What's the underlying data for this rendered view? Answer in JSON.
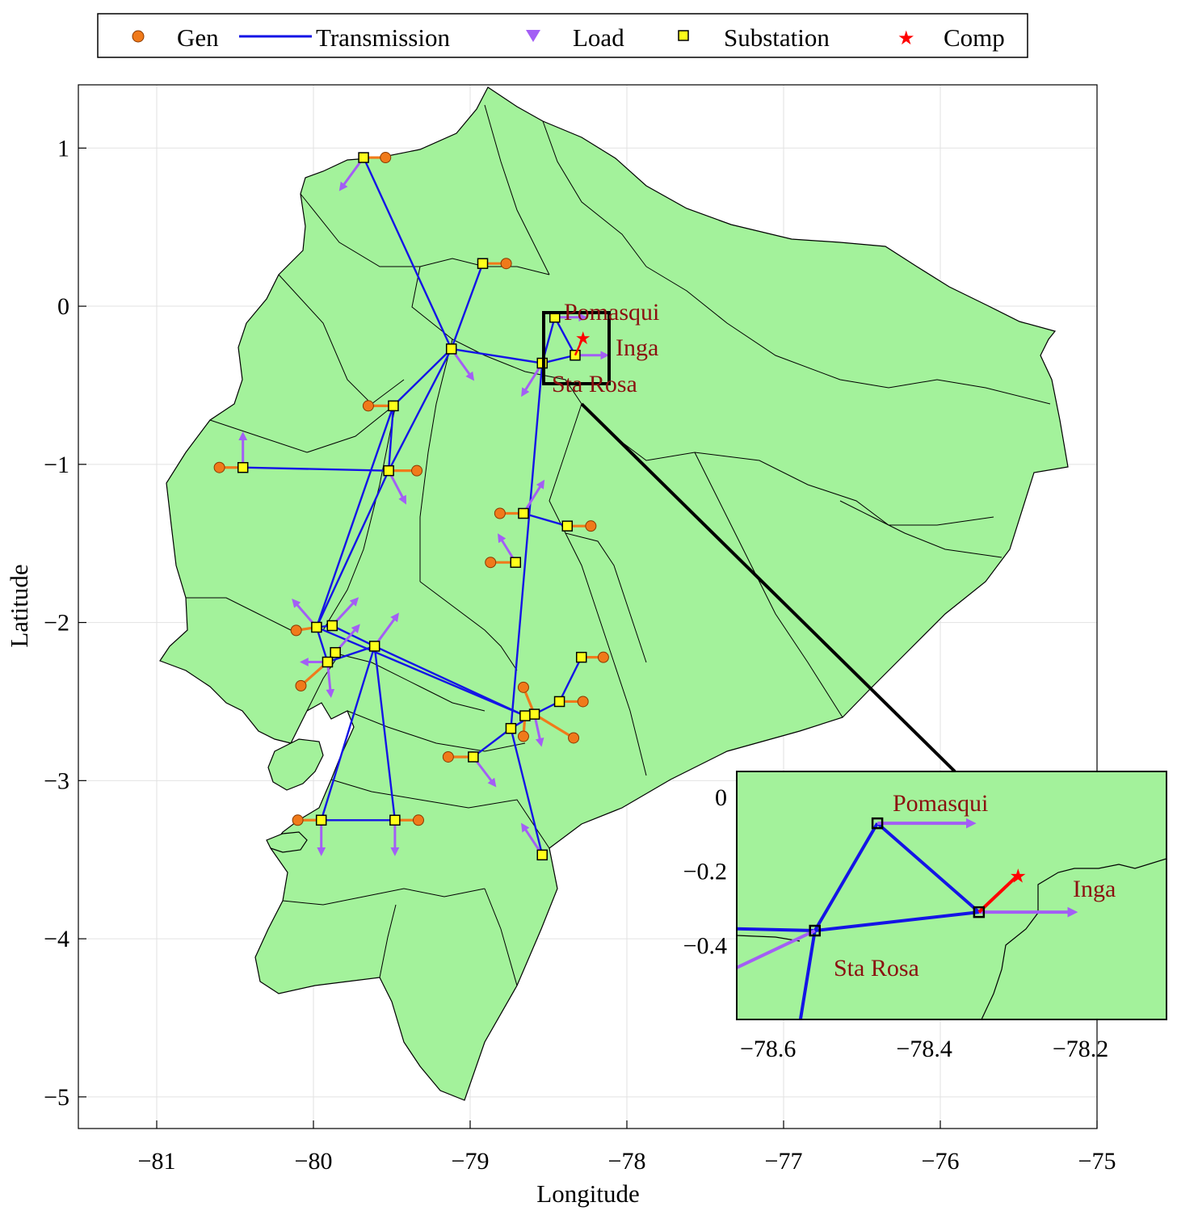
{
  "legend": {
    "gen": "Gen",
    "transmission": "Transmission",
    "load": "Load",
    "substation": "Substation",
    "comp": "Comp"
  },
  "axes": {
    "xlabel": "Longitude",
    "ylabel": "Latitude",
    "xticks": [
      "−81",
      "−80",
      "−79",
      "−78",
      "−77",
      "−76",
      "−75"
    ],
    "yticks": [
      "1",
      "0",
      "−1",
      "−2",
      "−3",
      "−4",
      "−5"
    ],
    "xlim": [
      -81.5,
      -75
    ],
    "ylim": [
      -5.2,
      1.4
    ],
    "grid": true
  },
  "colors": {
    "land": "#a3f29b",
    "gen": "#f07a1a",
    "transmission": "#1414e6",
    "load": "#a35ef5",
    "substation": "#ffff1a",
    "comp": "#ff0000",
    "place_label": "#8b1010"
  },
  "place_labels": {
    "pomasqui": "Pomasqui",
    "inga": "Inga",
    "sta_rosa": "Sta Rosa"
  },
  "inset": {
    "xticks": [
      "−78.6",
      "−78.4",
      "−78.2"
    ],
    "yticks": [
      "0",
      "−0.2",
      "−0.4"
    ],
    "xlim": [
      -78.64,
      -78.09
    ],
    "ylim": [
      -0.6,
      0.07
    ]
  },
  "chart_data": {
    "type": "map",
    "substations": [
      {
        "lon": -79.68,
        "lat": 0.94
      },
      {
        "lon": -78.92,
        "lat": 0.27
      },
      {
        "lon": -79.12,
        "lat": -0.27
      },
      {
        "lon": -78.46,
        "lat": -0.07
      },
      {
        "lon": -78.33,
        "lat": -0.31
      },
      {
        "lon": -78.54,
        "lat": -0.36
      },
      {
        "lon": -79.49,
        "lat": -0.63
      },
      {
        "lon": -79.52,
        "lat": -1.04
      },
      {
        "lon": -80.45,
        "lat": -1.02
      },
      {
        "lon": -78.66,
        "lat": -1.31
      },
      {
        "lon": -78.38,
        "lat": -1.39
      },
      {
        "lon": -78.71,
        "lat": -1.62
      },
      {
        "lon": -79.98,
        "lat": -2.03
      },
      {
        "lon": -79.88,
        "lat": -2.02
      },
      {
        "lon": -79.61,
        "lat": -2.15
      },
      {
        "lon": -79.86,
        "lat": -2.19
      },
      {
        "lon": -79.91,
        "lat": -2.25
      },
      {
        "lon": -78.29,
        "lat": -2.22
      },
      {
        "lon": -78.43,
        "lat": -2.5
      },
      {
        "lon": -78.59,
        "lat": -2.58
      },
      {
        "lon": -78.65,
        "lat": -2.59
      },
      {
        "lon": -78.74,
        "lat": -2.67
      },
      {
        "lon": -78.98,
        "lat": -2.85
      },
      {
        "lon": -79.95,
        "lat": -3.25
      },
      {
        "lon": -79.48,
        "lat": -3.25
      },
      {
        "lon": -78.54,
        "lat": -3.47
      }
    ],
    "generators": [
      {
        "lon": -79.54,
        "lat": 0.94
      },
      {
        "lon": -78.77,
        "lat": 0.27
      },
      {
        "lon": -79.65,
        "lat": -0.63
      },
      {
        "lon": -79.34,
        "lat": -1.04
      },
      {
        "lon": -80.6,
        "lat": -1.02
      },
      {
        "lon": -78.81,
        "lat": -1.31
      },
      {
        "lon": -78.23,
        "lat": -1.39
      },
      {
        "lon": -78.87,
        "lat": -1.62
      },
      {
        "lon": -80.11,
        "lat": -2.05
      },
      {
        "lon": -80.08,
        "lat": -2.4
      },
      {
        "lon": -78.15,
        "lat": -2.22
      },
      {
        "lon": -78.28,
        "lat": -2.5
      },
      {
        "lon": -78.66,
        "lat": -2.41
      },
      {
        "lon": -78.66,
        "lat": -2.72
      },
      {
        "lon": -78.34,
        "lat": -2.73
      },
      {
        "lon": -79.14,
        "lat": -2.85
      },
      {
        "lon": -80.1,
        "lat": -3.25
      },
      {
        "lon": -79.33,
        "lat": -3.25
      }
    ],
    "loads": [
      {
        "from": [
          -79.68,
          0.94
        ],
        "to": [
          -79.82,
          0.75
        ]
      },
      {
        "from": [
          -79.12,
          -0.27
        ],
        "to": [
          -78.99,
          -0.45
        ]
      },
      {
        "from": [
          -78.54,
          -0.36
        ],
        "to": [
          -78.66,
          -0.55
        ]
      },
      {
        "from": [
          -78.46,
          -0.07
        ],
        "to": [
          -78.28,
          -0.07
        ]
      },
      {
        "from": [
          -78.33,
          -0.31
        ],
        "to": [
          -78.14,
          -0.31
        ]
      },
      {
        "from": [
          -80.45,
          -1.02
        ],
        "to": [
          -80.45,
          -0.82
        ]
      },
      {
        "from": [
          -79.52,
          -1.04
        ],
        "to": [
          -79.42,
          -1.23
        ]
      },
      {
        "from": [
          -78.66,
          -1.31
        ],
        "to": [
          -78.54,
          -1.12
        ]
      },
      {
        "from": [
          -78.71,
          -1.62
        ],
        "to": [
          -78.81,
          -1.46
        ]
      },
      {
        "from": [
          -79.98,
          -2.03
        ],
        "to": [
          -80.12,
          -1.87
        ]
      },
      {
        "from": [
          -79.88,
          -2.02
        ],
        "to": [
          -79.73,
          -1.86
        ]
      },
      {
        "from": [
          -79.86,
          -2.19
        ],
        "to": [
          -79.72,
          -2.03
        ]
      },
      {
        "from": [
          -79.61,
          -2.15
        ],
        "to": [
          -79.47,
          -1.96
        ]
      },
      {
        "from": [
          -79.91,
          -2.25
        ],
        "to": [
          -80.06,
          -2.25
        ]
      },
      {
        "from": [
          -79.91,
          -2.25
        ],
        "to": [
          -79.89,
          -2.45
        ]
      },
      {
        "from": [
          -78.59,
          -2.58
        ],
        "to": [
          -78.55,
          -2.76
        ]
      },
      {
        "from": [
          -78.98,
          -2.85
        ],
        "to": [
          -78.85,
          -3.02
        ]
      },
      {
        "from": [
          -78.54,
          -3.47
        ],
        "to": [
          -78.66,
          -3.29
        ]
      },
      {
        "from": [
          -79.95,
          -3.25
        ],
        "to": [
          -79.95,
          -3.45
        ]
      },
      {
        "from": [
          -79.48,
          -3.25
        ],
        "to": [
          -79.48,
          -3.45
        ]
      }
    ],
    "gen_links": [
      [
        -79.68,
        0.94,
        -79.54,
        0.94
      ],
      [
        -78.92,
        0.27,
        -78.77,
        0.27
      ],
      [
        -79.49,
        -0.63,
        -79.65,
        -0.63
      ],
      [
        -79.52,
        -1.04,
        -79.34,
        -1.04
      ],
      [
        -80.45,
        -1.02,
        -80.6,
        -1.02
      ],
      [
        -78.66,
        -1.31,
        -78.81,
        -1.31
      ],
      [
        -78.38,
        -1.39,
        -78.23,
        -1.39
      ],
      [
        -78.71,
        -1.62,
        -78.87,
        -1.62
      ],
      [
        -79.98,
        -2.03,
        -80.11,
        -2.05
      ],
      [
        -79.91,
        -2.25,
        -80.08,
        -2.4
      ],
      [
        -78.29,
        -2.22,
        -78.15,
        -2.22
      ],
      [
        -78.43,
        -2.5,
        -78.28,
        -2.5
      ],
      [
        -78.59,
        -2.58,
        -78.66,
        -2.41
      ],
      [
        -78.65,
        -2.59,
        -78.66,
        -2.72
      ],
      [
        -78.59,
        -2.58,
        -78.34,
        -2.73
      ],
      [
        -78.98,
        -2.85,
        -79.14,
        -2.85
      ],
      [
        -79.95,
        -3.25,
        -80.1,
        -3.25
      ],
      [
        -79.48,
        -3.25,
        -79.33,
        -3.25
      ]
    ],
    "lines": [
      [
        -79.68,
        0.94,
        -79.12,
        -0.27
      ],
      [
        -78.92,
        0.27,
        -79.12,
        -0.27
      ],
      [
        -79.12,
        -0.27,
        -78.54,
        -0.36
      ],
      [
        -78.54,
        -0.36,
        -78.46,
        -0.07
      ],
      [
        -78.46,
        -0.07,
        -78.33,
        -0.31
      ],
      [
        -78.33,
        -0.31,
        -78.54,
        -0.36
      ],
      [
        -79.12,
        -0.27,
        -79.49,
        -0.63
      ],
      [
        -79.49,
        -0.63,
        -79.52,
        -1.04
      ],
      [
        -79.12,
        -0.27,
        -79.52,
        -1.04
      ],
      [
        -80.45,
        -1.02,
        -79.52,
        -1.04
      ],
      [
        -79.49,
        -0.63,
        -79.98,
        -2.03
      ],
      [
        -79.52,
        -1.04,
        -79.98,
        -2.03
      ],
      [
        -78.54,
        -0.36,
        -78.74,
        -2.67
      ],
      [
        -78.66,
        -1.31,
        -78.38,
        -1.39
      ],
      [
        -79.98,
        -2.03,
        -79.88,
        -2.02
      ],
      [
        -79.98,
        -2.03,
        -79.91,
        -2.25
      ],
      [
        -79.88,
        -2.02,
        -79.61,
        -2.15
      ],
      [
        -79.91,
        -2.25,
        -79.61,
        -2.15
      ],
      [
        -79.61,
        -2.15,
        -78.65,
        -2.59
      ],
      [
        -79.98,
        -2.03,
        -78.65,
        -2.59
      ],
      [
        -79.61,
        -2.15,
        -79.95,
        -3.25
      ],
      [
        -79.61,
        -2.15,
        -79.48,
        -3.25
      ],
      [
        -79.95,
        -3.25,
        -79.48,
        -3.25
      ],
      [
        -78.65,
        -2.59,
        -78.59,
        -2.58
      ],
      [
        -78.59,
        -2.58,
        -78.43,
        -2.5
      ],
      [
        -78.43,
        -2.5,
        -78.29,
        -2.22
      ],
      [
        -78.74,
        -2.67,
        -78.98,
        -2.85
      ],
      [
        -78.74,
        -2.67,
        -78.54,
        -3.47
      ],
      [
        -78.74,
        -2.67,
        -78.59,
        -2.58
      ]
    ],
    "comp_link": [
      -78.33,
      -0.31,
      -78.28,
      -0.2
    ]
  }
}
